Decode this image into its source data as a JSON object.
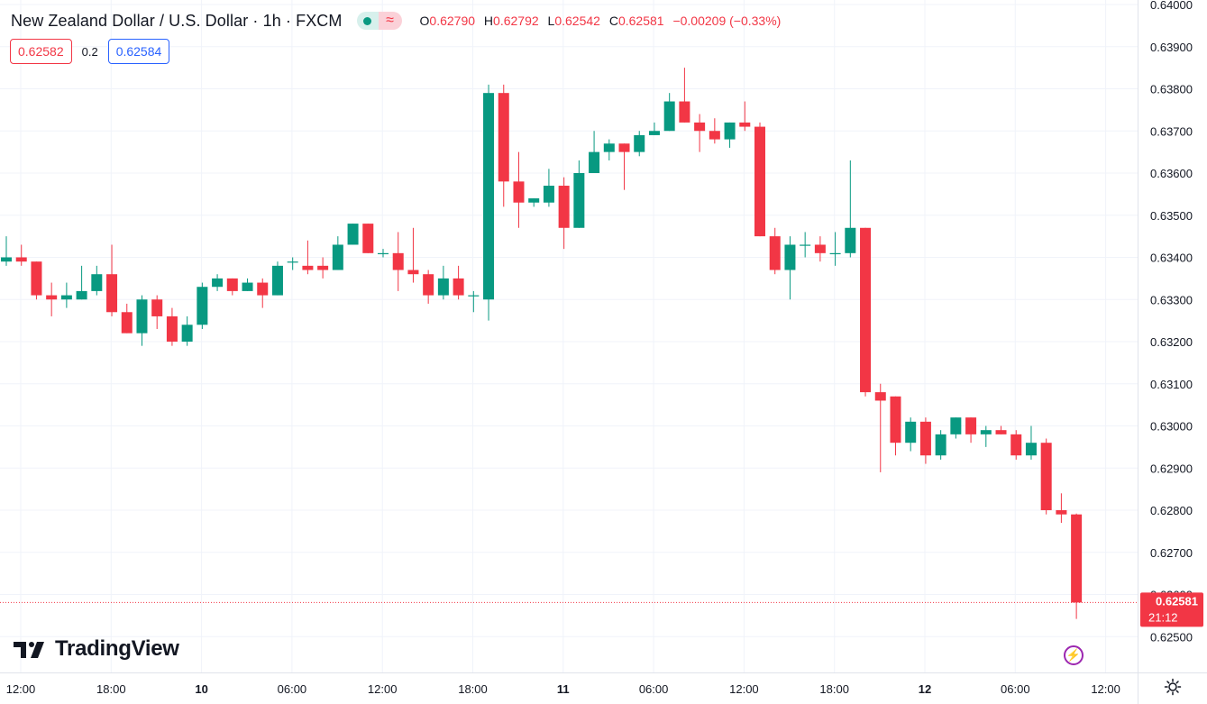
{
  "header": {
    "symbol": "New Zealand Dollar / U.S. Dollar · 1h · FXCM",
    "o_label": "O",
    "o_value": "0.62790",
    "h_label": "H",
    "h_value": "0.62792",
    "l_label": "L",
    "l_value": "0.62542",
    "c_label": "C",
    "c_value": "0.62581",
    "change": "−0.00209 (−0.33%)"
  },
  "trade": {
    "sell_price": "0.62582",
    "spread": "0.2",
    "buy_price": "0.62584"
  },
  "last_price": {
    "value": "0.62581",
    "countdown": "21:12"
  },
  "brand": {
    "name": "TradingView"
  },
  "colors": {
    "up": "#089981",
    "down": "#f23645",
    "grid": "#f0f3fa",
    "text": "#131722"
  },
  "chart_data": {
    "type": "candlestick",
    "y_axis_labels": [
      "0.64000",
      "0.63900",
      "0.63800",
      "0.63700",
      "0.63600",
      "0.63500",
      "0.63400",
      "0.63300",
      "0.63200",
      "0.63100",
      "0.63000",
      "0.62900",
      "0.62800",
      "0.62700",
      "0.62600",
      "0.62500"
    ],
    "ylim": [
      0.6245,
      0.64
    ],
    "x_axis_labels": [
      {
        "label": "12:00",
        "bold": false
      },
      {
        "label": "18:00",
        "bold": false
      },
      {
        "label": "10",
        "bold": true
      },
      {
        "label": "06:00",
        "bold": false
      },
      {
        "label": "12:00",
        "bold": false
      },
      {
        "label": "18:00",
        "bold": false
      },
      {
        "label": "11",
        "bold": true
      },
      {
        "label": "06:00",
        "bold": false
      },
      {
        "label": "12:00",
        "bold": false
      },
      {
        "label": "18:00",
        "bold": false
      },
      {
        "label": "12",
        "bold": true
      },
      {
        "label": "06:00",
        "bold": false
      },
      {
        "label": "12:00",
        "bold": false
      }
    ],
    "candles": [
      {
        "o": 0.6339,
        "h": 0.6345,
        "l": 0.6338,
        "c": 0.634
      },
      {
        "o": 0.634,
        "h": 0.6343,
        "l": 0.6338,
        "c": 0.6339
      },
      {
        "o": 0.6339,
        "h": 0.6339,
        "l": 0.633,
        "c": 0.6331
      },
      {
        "o": 0.6331,
        "h": 0.6334,
        "l": 0.6326,
        "c": 0.633
      },
      {
        "o": 0.633,
        "h": 0.6334,
        "l": 0.6328,
        "c": 0.6331
      },
      {
        "o": 0.633,
        "h": 0.6338,
        "l": 0.633,
        "c": 0.6332
      },
      {
        "o": 0.6332,
        "h": 0.6338,
        "l": 0.6331,
        "c": 0.6336
      },
      {
        "o": 0.6336,
        "h": 0.6343,
        "l": 0.6326,
        "c": 0.6327
      },
      {
        "o": 0.6327,
        "h": 0.6329,
        "l": 0.6322,
        "c": 0.6322
      },
      {
        "o": 0.6322,
        "h": 0.6331,
        "l": 0.6319,
        "c": 0.633
      },
      {
        "o": 0.633,
        "h": 0.6331,
        "l": 0.6323,
        "c": 0.6326
      },
      {
        "o": 0.6326,
        "h": 0.6328,
        "l": 0.6319,
        "c": 0.632
      },
      {
        "o": 0.632,
        "h": 0.6326,
        "l": 0.6319,
        "c": 0.6324
      },
      {
        "o": 0.6324,
        "h": 0.6334,
        "l": 0.6323,
        "c": 0.6333
      },
      {
        "o": 0.6333,
        "h": 0.6336,
        "l": 0.6332,
        "c": 0.6335
      },
      {
        "o": 0.6335,
        "h": 0.6335,
        "l": 0.6331,
        "c": 0.6332
      },
      {
        "o": 0.6332,
        "h": 0.6335,
        "l": 0.6332,
        "c": 0.6334
      },
      {
        "o": 0.6334,
        "h": 0.6335,
        "l": 0.6328,
        "c": 0.6331
      },
      {
        "o": 0.6331,
        "h": 0.6339,
        "l": 0.6331,
        "c": 0.6338
      },
      {
        "o": 0.6339,
        "h": 0.634,
        "l": 0.6337,
        "c": 0.6339
      },
      {
        "o": 0.6338,
        "h": 0.6344,
        "l": 0.6336,
        "c": 0.6337
      },
      {
        "o": 0.6338,
        "h": 0.634,
        "l": 0.6335,
        "c": 0.6337
      },
      {
        "o": 0.6337,
        "h": 0.6345,
        "l": 0.6337,
        "c": 0.6343
      },
      {
        "o": 0.6343,
        "h": 0.6348,
        "l": 0.6343,
        "c": 0.6348
      },
      {
        "o": 0.6348,
        "h": 0.6348,
        "l": 0.6341,
        "c": 0.6341
      },
      {
        "o": 0.6341,
        "h": 0.6342,
        "l": 0.634,
        "c": 0.6341
      },
      {
        "o": 0.6341,
        "h": 0.6346,
        "l": 0.6332,
        "c": 0.6337
      },
      {
        "o": 0.6337,
        "h": 0.6347,
        "l": 0.6334,
        "c": 0.6336
      },
      {
        "o": 0.6336,
        "h": 0.6337,
        "l": 0.6329,
        "c": 0.6331
      },
      {
        "o": 0.6331,
        "h": 0.6338,
        "l": 0.633,
        "c": 0.6335
      },
      {
        "o": 0.6335,
        "h": 0.6338,
        "l": 0.633,
        "c": 0.6331
      },
      {
        "o": 0.6331,
        "h": 0.6332,
        "l": 0.6327,
        "c": 0.6331
      },
      {
        "o": 0.633,
        "h": 0.6381,
        "l": 0.6325,
        "c": 0.6379
      },
      {
        "o": 0.6379,
        "h": 0.6381,
        "l": 0.6352,
        "c": 0.6358
      },
      {
        "o": 0.6358,
        "h": 0.6365,
        "l": 0.6347,
        "c": 0.6353
      },
      {
        "o": 0.6353,
        "h": 0.6354,
        "l": 0.6352,
        "c": 0.6354
      },
      {
        "o": 0.6353,
        "h": 0.6361,
        "l": 0.6352,
        "c": 0.6357
      },
      {
        "o": 0.6357,
        "h": 0.6359,
        "l": 0.6342,
        "c": 0.6347
      },
      {
        "o": 0.6347,
        "h": 0.6363,
        "l": 0.6347,
        "c": 0.636
      },
      {
        "o": 0.636,
        "h": 0.637,
        "l": 0.636,
        "c": 0.6365
      },
      {
        "o": 0.6365,
        "h": 0.6368,
        "l": 0.6363,
        "c": 0.6367
      },
      {
        "o": 0.6367,
        "h": 0.6367,
        "l": 0.6356,
        "c": 0.6365
      },
      {
        "o": 0.6365,
        "h": 0.637,
        "l": 0.6364,
        "c": 0.6369
      },
      {
        "o": 0.6369,
        "h": 0.6372,
        "l": 0.6369,
        "c": 0.637
      },
      {
        "o": 0.637,
        "h": 0.6379,
        "l": 0.637,
        "c": 0.6377
      },
      {
        "o": 0.6377,
        "h": 0.6385,
        "l": 0.6372,
        "c": 0.6372
      },
      {
        "o": 0.6372,
        "h": 0.6374,
        "l": 0.6365,
        "c": 0.637
      },
      {
        "o": 0.637,
        "h": 0.6373,
        "l": 0.6367,
        "c": 0.6368
      },
      {
        "o": 0.6368,
        "h": 0.6372,
        "l": 0.6366,
        "c": 0.6372
      },
      {
        "o": 0.6372,
        "h": 0.6377,
        "l": 0.637,
        "c": 0.6371
      },
      {
        "o": 0.6371,
        "h": 0.6372,
        "l": 0.6345,
        "c": 0.6345
      },
      {
        "o": 0.6345,
        "h": 0.6347,
        "l": 0.6336,
        "c": 0.6337
      },
      {
        "o": 0.6337,
        "h": 0.6345,
        "l": 0.633,
        "c": 0.6343
      },
      {
        "o": 0.6343,
        "h": 0.6346,
        "l": 0.634,
        "c": 0.6343
      },
      {
        "o": 0.6343,
        "h": 0.6345,
        "l": 0.6339,
        "c": 0.6341
      },
      {
        "o": 0.6341,
        "h": 0.6346,
        "l": 0.6338,
        "c": 0.6341
      },
      {
        "o": 0.6341,
        "h": 0.6363,
        "l": 0.634,
        "c": 0.6347
      },
      {
        "o": 0.6347,
        "h": 0.6347,
        "l": 0.6307,
        "c": 0.6308
      },
      {
        "o": 0.6308,
        "h": 0.631,
        "l": 0.6289,
        "c": 0.6306
      },
      {
        "o": 0.6307,
        "h": 0.6307,
        "l": 0.6293,
        "c": 0.6296
      },
      {
        "o": 0.6296,
        "h": 0.6302,
        "l": 0.6294,
        "c": 0.6301
      },
      {
        "o": 0.6301,
        "h": 0.6302,
        "l": 0.6291,
        "c": 0.6293
      },
      {
        "o": 0.6293,
        "h": 0.6299,
        "l": 0.6292,
        "c": 0.6298
      },
      {
        "o": 0.6298,
        "h": 0.6302,
        "l": 0.6297,
        "c": 0.6302
      },
      {
        "o": 0.6302,
        "h": 0.6302,
        "l": 0.6296,
        "c": 0.6298
      },
      {
        "o": 0.6298,
        "h": 0.63,
        "l": 0.6295,
        "c": 0.6299
      },
      {
        "o": 0.6299,
        "h": 0.63,
        "l": 0.6298,
        "c": 0.6298
      },
      {
        "o": 0.6298,
        "h": 0.6299,
        "l": 0.6292,
        "c": 0.6293
      },
      {
        "o": 0.6293,
        "h": 0.63,
        "l": 0.6292,
        "c": 0.6296
      },
      {
        "o": 0.6296,
        "h": 0.6297,
        "l": 0.6279,
        "c": 0.628
      },
      {
        "o": 0.628,
        "h": 0.6284,
        "l": 0.6277,
        "c": 0.6279
      },
      {
        "o": 0.6279,
        "h": 0.62792,
        "l": 0.62542,
        "c": 0.62581
      }
    ]
  }
}
